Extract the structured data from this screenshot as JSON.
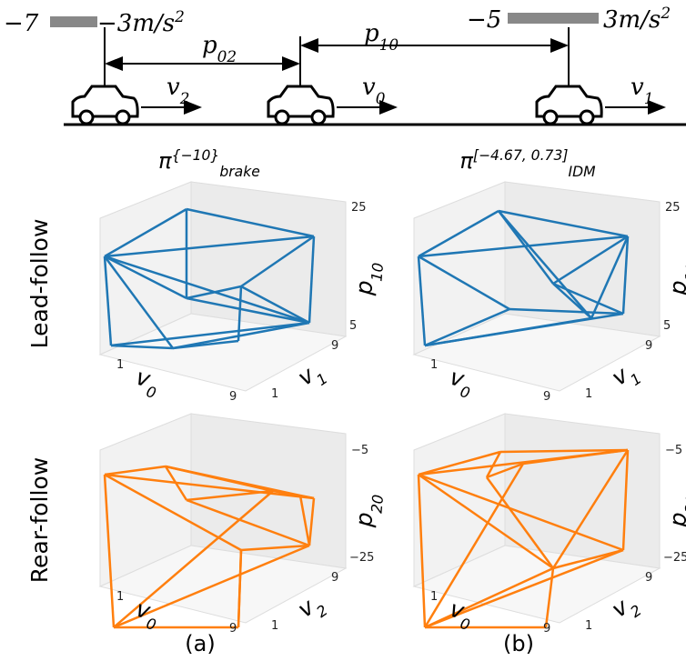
{
  "top": {
    "ranges": [
      {
        "min": "−7",
        "max": "−3m/s",
        "sup": "2"
      },
      {
        "min": "−5",
        "max": "3m/s",
        "sup": "2"
      }
    ],
    "gaps": [
      {
        "label": "p",
        "sub": "02"
      },
      {
        "label": "p",
        "sub": "10"
      }
    ],
    "cars": [
      {
        "label": "v",
        "sub": "2"
      },
      {
        "label": "v",
        "sub": "0"
      },
      {
        "label": "v",
        "sub": "1"
      }
    ]
  },
  "columns": [
    {
      "symbol": "π",
      "sup": "{−10}",
      "sub": "brake",
      "caption": "(a)"
    },
    {
      "symbol": "π",
      "sup": "[−4.67, 0.73]",
      "sub": "IDM",
      "caption": "(b)"
    }
  ],
  "rows": [
    {
      "label": "Lead-follow",
      "x_label": "v",
      "x_sub": "0",
      "y_label": "v",
      "y_sub": "1",
      "z_label": "p",
      "z_sub": "10",
      "x_ticks": [
        "1",
        "9"
      ],
      "y_ticks": [
        "1",
        "9"
      ],
      "z_ticks": [
        "5",
        "25"
      ]
    },
    {
      "label": "Rear-follow",
      "x_label": "v",
      "x_sub": "0",
      "y_label": "v",
      "y_sub": "2",
      "z_label": "p",
      "z_sub": "20",
      "x_ticks": [
        "1",
        "9"
      ],
      "y_ticks": [
        "1",
        "9"
      ],
      "z_ticks": [
        "−25",
        "−5"
      ]
    }
  ]
}
